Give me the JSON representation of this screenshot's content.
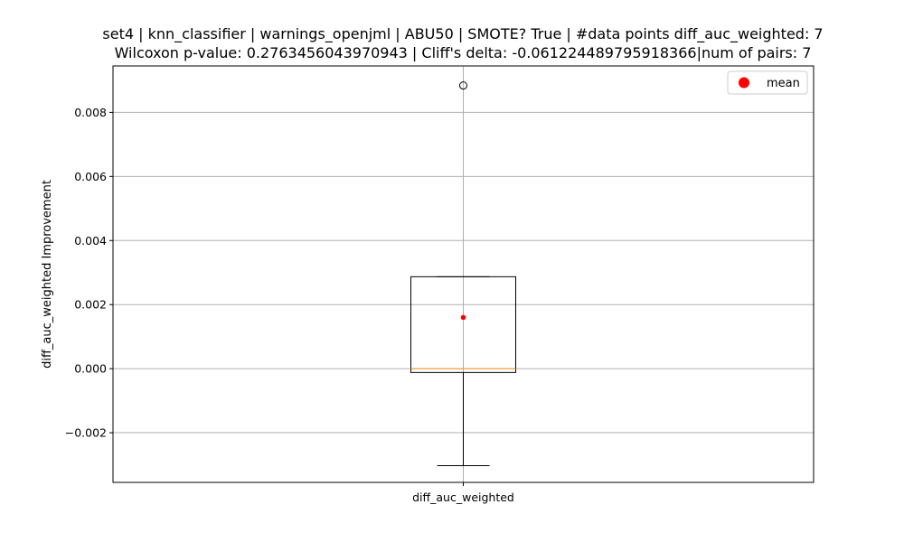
{
  "chart_data": {
    "type": "box",
    "title_line1": "set4 | knn_classifier | warnings_openjml | ABU50 | SMOTE? True | #data points diff_auc_weighted: 7",
    "title_line2": "Wilcoxon p-value: 0.2763456043970943 | Cliff's delta: -0.061224489795918366|num of pairs: 7",
    "xlabel": "",
    "ylabel": "diff_auc_weighted Improvement",
    "categories": [
      "diff_auc_weighted"
    ],
    "ylim": [
      -0.00355,
      0.00945
    ],
    "yticks": [
      -0.002,
      0.0,
      0.002,
      0.004,
      0.006,
      0.008
    ],
    "ytick_labels": [
      "−0.002",
      "0.000",
      "0.002",
      "0.004",
      "0.006",
      "0.008"
    ],
    "grid": true,
    "legend": {
      "position": "top-right",
      "entries": [
        "mean"
      ]
    },
    "box": {
      "whisker_low": -0.00303,
      "q1": -0.00012,
      "median": 0.0,
      "q3": 0.00287,
      "whisker_high": 0.00287,
      "mean": 0.0016,
      "outliers": [
        0.00884
      ]
    },
    "colors": {
      "box": "#000000",
      "median": "#f59c3c",
      "mean": "#ff0000",
      "grid": "#b0b0b0"
    }
  }
}
